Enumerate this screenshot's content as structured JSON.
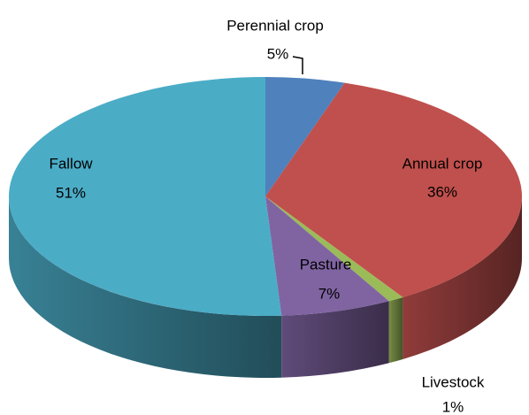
{
  "chart_data": {
    "type": "pie3d",
    "categories": [
      "Perennial crop",
      "Annual crop",
      "Livestock",
      "Pasture",
      "Fallow"
    ],
    "values": [
      5,
      36,
      1,
      7,
      51
    ],
    "value_labels": [
      "5%",
      "36%",
      "1%",
      "7%",
      "51%"
    ],
    "colors": [
      "#4f81bd",
      "#c0504d",
      "#9bbb59",
      "#8064a2",
      "#4bacc6"
    ]
  }
}
